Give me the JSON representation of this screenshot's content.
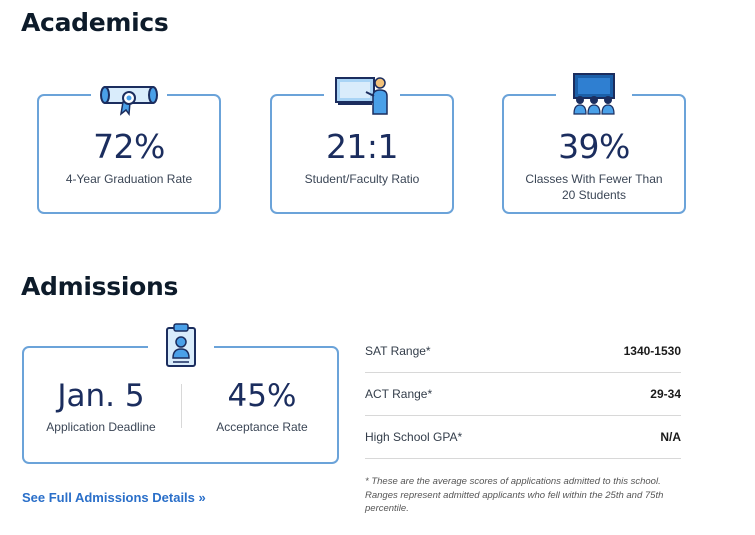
{
  "academics": {
    "title": "Academics",
    "stats": [
      {
        "value": "72%",
        "label": "4-Year Graduation Rate",
        "icon": "diploma-icon"
      },
      {
        "value": "21:1",
        "label": "Student/Faculty Ratio",
        "icon": "teacher-icon"
      },
      {
        "value": "39%",
        "label": "Classes With Fewer Than 20 Students",
        "icon": "classroom-icon"
      }
    ]
  },
  "admissions": {
    "title": "Admissions",
    "icon": "clipboard-icon",
    "deadline": {
      "value": "Jan. 5",
      "label": "Application Deadline"
    },
    "acceptance": {
      "value": "45%",
      "label": "Acceptance Rate"
    },
    "scores": [
      {
        "name": "SAT Range*",
        "value": "1340-1530"
      },
      {
        "name": "ACT Range*",
        "value": "29-34"
      },
      {
        "name": "High School GPA*",
        "value": "N/A"
      }
    ],
    "footnote": "* These are the average scores of applications admitted to this school. Ranges represent admitted applicants who fell within the 25th and 75th percentile.",
    "details_link": "See Full Admissions Details »"
  },
  "colors": {
    "accent_blue": "#2a6fc9",
    "card_border": "#6ba3d9",
    "navy": "#1b2d5e"
  }
}
